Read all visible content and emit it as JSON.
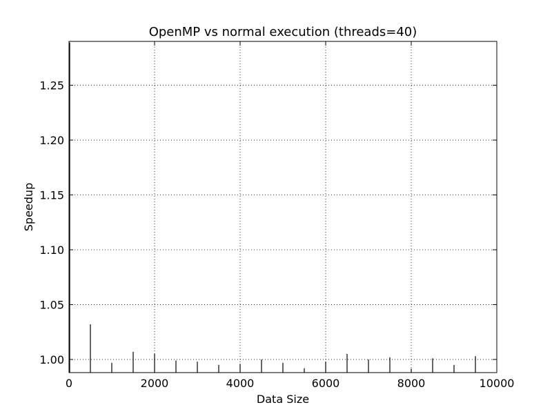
{
  "chart_data": {
    "type": "bar",
    "title": "OpenMP vs normal execution (threads=40)",
    "xlabel": "Data Size",
    "ylabel": "Speedup",
    "xlim": [
      0,
      10000
    ],
    "ylim": [
      0.988,
      1.29
    ],
    "xticks": [
      0,
      2000,
      4000,
      6000,
      8000,
      10000
    ],
    "yticks": [
      1.0,
      1.05,
      1.1,
      1.15,
      1.2,
      1.25
    ],
    "xtick_labels": [
      "0",
      "2000",
      "4000",
      "6000",
      "8000",
      "10000"
    ],
    "ytick_labels": [
      "1.00",
      "1.05",
      "1.10",
      "1.15",
      "1.20",
      "1.25"
    ],
    "grid": true,
    "x": [
      0,
      500,
      1000,
      1500,
      2000,
      2500,
      3000,
      3500,
      4000,
      4500,
      5000,
      5500,
      6000,
      6500,
      7000,
      7500,
      8000,
      8500,
      9000,
      9500
    ],
    "values": [
      1.289,
      1.032,
      0.997,
      1.007,
      1.005,
      0.999,
      0.998,
      0.995,
      0.996,
      1.0,
      0.997,
      0.992,
      0.998,
      1.005,
      1.0,
      1.002,
      0.991,
      1.001,
      0.995,
      1.003
    ]
  }
}
